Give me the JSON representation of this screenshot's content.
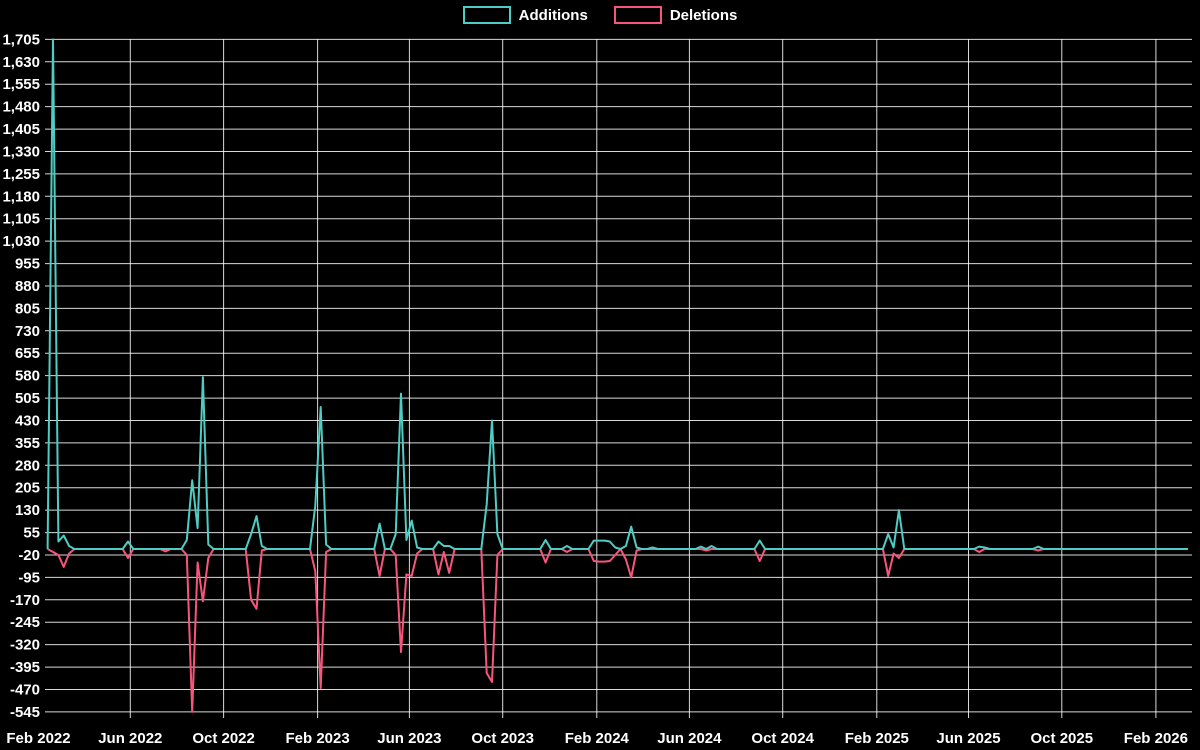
{
  "legend": {
    "additions_label": "Additions",
    "deletions_label": "Deletions"
  },
  "colors": {
    "additions": "#4ecdc4",
    "deletions": "#f8557d",
    "background": "#000000",
    "grid": "#ffffff",
    "text": "#ffffff"
  },
  "chart_data": {
    "type": "line",
    "title": "",
    "xlabel": "",
    "ylabel": "",
    "legend_position": "top-center",
    "grid": true,
    "interval": "weekly",
    "range_start": "2022-02-13",
    "range_end": "2026-03-15",
    "default_value": 0,
    "series_names": [
      "Additions",
      "Deletions"
    ],
    "y_axis": {
      "max": 1705,
      "min": -545,
      "tick_step": 75,
      "tick_labels": [
        "1,705",
        "1,630",
        "1,555",
        "1,480",
        "1,405",
        "1,330",
        "1,255",
        "1,180",
        "1,105",
        "1,030",
        "955",
        "880",
        "805",
        "730",
        "655",
        "580",
        "505",
        "430",
        "355",
        "280",
        "205",
        "130",
        "55",
        "-20",
        "-95",
        "-170",
        "-245",
        "-320",
        "-395",
        "-470",
        "-545"
      ]
    },
    "x_axis": {
      "ticks": [
        {
          "date": "2022-02-01",
          "label": "Feb 2022"
        },
        {
          "date": "2022-06-01",
          "label": "Jun 2022"
        },
        {
          "date": "2022-10-01",
          "label": "Oct 2022"
        },
        {
          "date": "2023-02-01",
          "label": "Feb 2023"
        },
        {
          "date": "2023-06-01",
          "label": "Jun 2023"
        },
        {
          "date": "2023-10-01",
          "label": "Oct 2023"
        },
        {
          "date": "2024-02-01",
          "label": "Feb 2024"
        },
        {
          "date": "2024-06-01",
          "label": "Jun 2024"
        },
        {
          "date": "2024-10-01",
          "label": "Oct 2024"
        },
        {
          "date": "2025-02-01",
          "label": "Feb 2025"
        },
        {
          "date": "2025-06-01",
          "label": "Jun 2025"
        },
        {
          "date": "2025-10-01",
          "label": "Oct 2025"
        },
        {
          "date": "2026-02-01",
          "label": "Feb 2026"
        }
      ]
    },
    "points_columns": [
      "week",
      "additions",
      "deletions"
    ],
    "points_note": "weekly values; all weeks not listed are 0 for both series",
    "points": [
      [
        "2022-02-20",
        1705,
        -10
      ],
      [
        "2022-02-27",
        25,
        -20
      ],
      [
        "2022-03-06",
        45,
        -60
      ],
      [
        "2022-03-13",
        10,
        -15
      ],
      [
        "2022-05-29",
        25,
        -30
      ],
      [
        "2022-07-17",
        0,
        -8
      ],
      [
        "2022-08-14",
        30,
        -20
      ],
      [
        "2022-08-21",
        230,
        -545
      ],
      [
        "2022-08-28",
        70,
        -45
      ],
      [
        "2022-09-04",
        575,
        -175
      ],
      [
        "2022-09-11",
        15,
        -30
      ],
      [
        "2022-11-06",
        50,
        -170
      ],
      [
        "2022-11-13",
        110,
        -200
      ],
      [
        "2022-11-20",
        10,
        -5
      ],
      [
        "2023-01-29",
        145,
        -75
      ],
      [
        "2023-02-05",
        475,
        -465
      ],
      [
        "2023-02-12",
        15,
        -10
      ],
      [
        "2023-04-23",
        85,
        -90
      ],
      [
        "2023-05-14",
        50,
        -20
      ],
      [
        "2023-05-21",
        520,
        -345
      ],
      [
        "2023-05-28",
        30,
        -85
      ],
      [
        "2023-06-04",
        95,
        -90
      ],
      [
        "2023-06-11",
        5,
        -15
      ],
      [
        "2023-07-09",
        25,
        -85
      ],
      [
        "2023-07-16",
        10,
        -10
      ],
      [
        "2023-07-23",
        10,
        -80
      ],
      [
        "2023-09-10",
        150,
        -415
      ],
      [
        "2023-09-17",
        430,
        -445
      ],
      [
        "2023-09-24",
        50,
        -20
      ],
      [
        "2023-11-26",
        30,
        -45
      ],
      [
        "2023-12-24",
        10,
        -10
      ],
      [
        "2024-01-28",
        28,
        -40
      ],
      [
        "2024-02-04",
        28,
        -42
      ],
      [
        "2024-02-11",
        28,
        -42
      ],
      [
        "2024-02-18",
        25,
        -40
      ],
      [
        "2024-02-25",
        5,
        -20
      ],
      [
        "2024-03-10",
        10,
        -35
      ],
      [
        "2024-03-17",
        75,
        -95
      ],
      [
        "2024-03-24",
        5,
        -5
      ],
      [
        "2024-04-14",
        5,
        0
      ],
      [
        "2024-06-16",
        8,
        0
      ],
      [
        "2024-06-23",
        0,
        -5
      ],
      [
        "2024-06-30",
        10,
        0
      ],
      [
        "2024-09-01",
        28,
        -40
      ],
      [
        "2025-02-16",
        50,
        -90
      ],
      [
        "2025-02-23",
        5,
        -15
      ],
      [
        "2025-03-02",
        130,
        -30
      ],
      [
        "2025-06-15",
        8,
        -10
      ],
      [
        "2025-06-22",
        5,
        0
      ],
      [
        "2025-08-31",
        8,
        -5
      ]
    ]
  }
}
